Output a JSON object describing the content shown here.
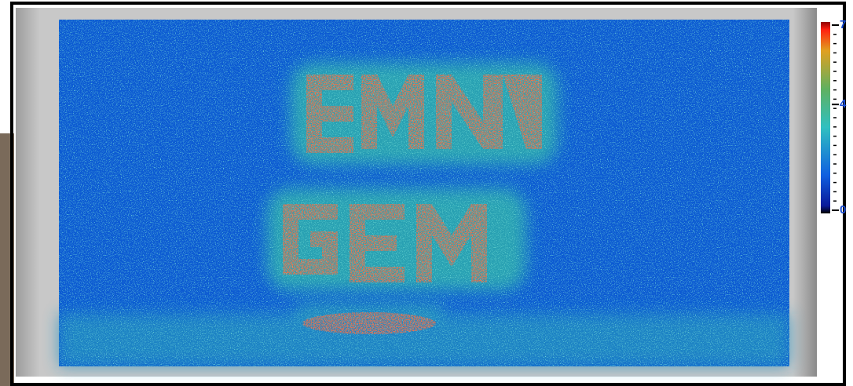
{
  "chart_data": {
    "type": "heatmap",
    "colorbar": {
      "lim": [
        0,
        7
      ],
      "ticks": [
        0,
        4,
        7
      ],
      "color": "#1a4fd8"
    }
  }
}
